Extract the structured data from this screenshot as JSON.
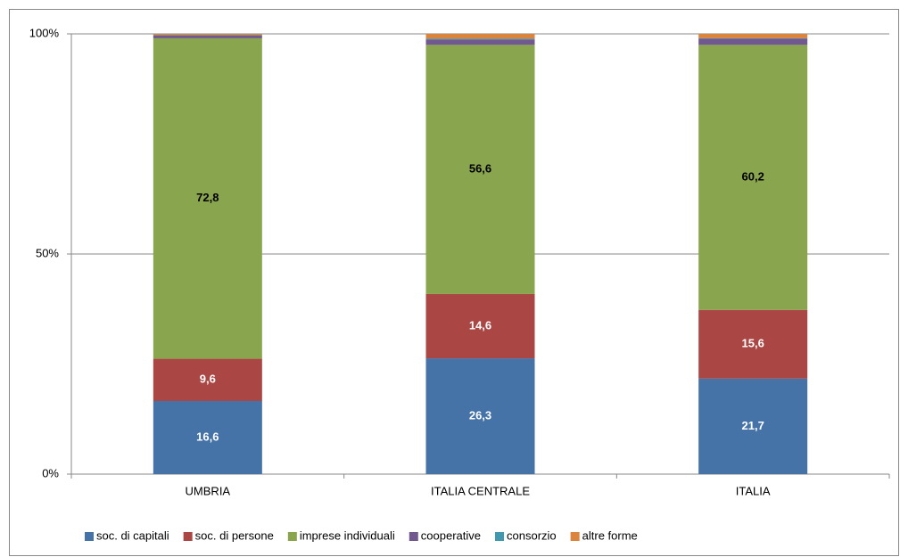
{
  "chart_data": {
    "type": "stacked_bar",
    "categories": [
      "UMBRIA",
      "ITALIA CENTRALE",
      "ITALIA"
    ],
    "series": [
      {
        "name": "soc. di capitali",
        "color": "#4572a7",
        "values": [
          16.6,
          26.3,
          21.7
        ],
        "value_labels": [
          "16,6",
          "26,3",
          "21,7"
        ]
      },
      {
        "name": "soc. di persone",
        "color": "#aa4643",
        "values": [
          9.6,
          14.6,
          15.6
        ],
        "value_labels": [
          "9,6",
          "14,6",
          "15,6"
        ]
      },
      {
        "name": "imprese individuali",
        "color": "#89a54e",
        "values": [
          72.8,
          56.6,
          60.2
        ],
        "value_labels": [
          "72,8",
          "56,6",
          "60,2"
        ]
      },
      {
        "name": "cooperative",
        "color": "#71588f",
        "values": [
          0.6,
          1.2,
          1.4
        ]
      },
      {
        "name": "consorzio",
        "color": "#4198af",
        "values": [
          0.1,
          0.2,
          0.1
        ]
      },
      {
        "name": "altre forme",
        "color": "#db843d",
        "values": [
          0.3,
          1.1,
          1.0
        ]
      }
    ],
    "ylim": [
      0,
      100
    ],
    "yticks": [
      {
        "value": 0,
        "label": "0%"
      },
      {
        "value": 50,
        "label": "50%"
      },
      {
        "value": 100,
        "label": "100%"
      }
    ],
    "grid": true,
    "legend": "bottom"
  }
}
